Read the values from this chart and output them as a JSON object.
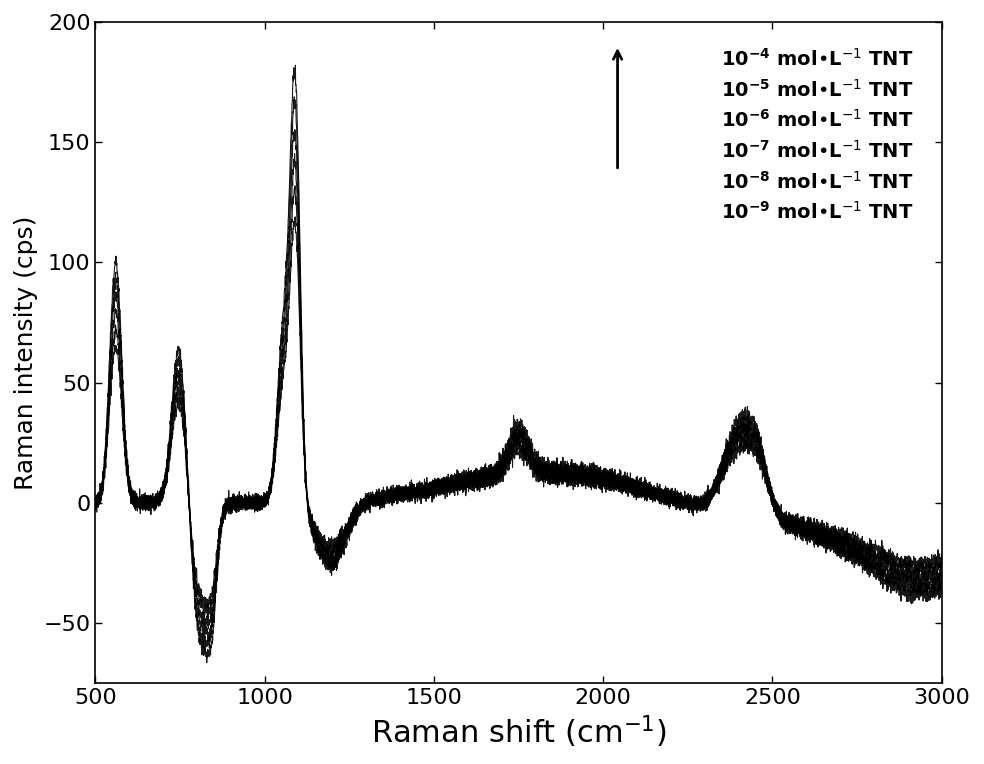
{
  "xlabel": "Raman shift (cm$^{-1}$)",
  "ylabel": "Raman intensity (cps)",
  "xlim": [
    500,
    3000
  ],
  "ylim": [
    -75,
    200
  ],
  "xticks": [
    500,
    1000,
    1500,
    2000,
    2500,
    3000
  ],
  "yticks": [
    -50,
    0,
    50,
    100,
    150,
    200
  ],
  "legend_labels": [
    "$\\mathbf{10^{-4}}$ mol•L$^{-1}$ TNT",
    "$\\mathbf{10^{-5}}$ mol•L$^{-1}$ TNT",
    "$\\mathbf{10^{-6}}$ mol•L$^{-1}$ TNT",
    "$\\mathbf{10^{-7}}$ mol•L$^{-1}$ TNT",
    "$\\mathbf{10^{-8}}$ mol•L$^{-1}$ TNT",
    "$\\mathbf{10^{-9}}$ mol•L$^{-1}$ TNT"
  ],
  "scale_factors": [
    1.0,
    0.93,
    0.86,
    0.79,
    0.72,
    0.65
  ],
  "line_color": "#000000",
  "background_color": "#ffffff",
  "xlabel_fontsize": 22,
  "ylabel_fontsize": 18,
  "tick_fontsize": 16,
  "legend_fontsize": 14
}
